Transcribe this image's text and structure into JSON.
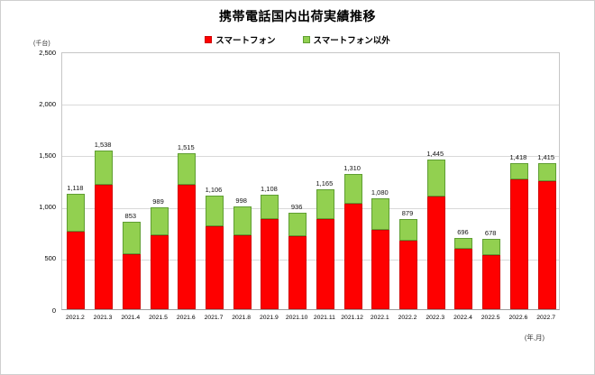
{
  "title": "携帯電話国内出荷実績推移",
  "y_axis_unit": "(千台)",
  "x_axis_unit": "(年,月)",
  "legend": {
    "items": [
      {
        "label": "スマートフォン",
        "color": "#fe0000"
      },
      {
        "label": "スマートフォン以外",
        "color": "#92d050"
      }
    ]
  },
  "colors": {
    "smartphone_fill": "#fe0000",
    "smartphone_border": "#d00000",
    "other_fill": "#92d050",
    "other_border": "#5f9e32",
    "gridline": "#d9d9d9"
  },
  "chart_data": {
    "type": "bar",
    "stacked": true,
    "title": "携帯電話国内出荷実績推移",
    "ylabel": "(千台)",
    "xlabel": "(年,月)",
    "ylim": [
      0,
      2500
    ],
    "grid": true,
    "legend_position": "top",
    "y_ticks": [
      "0",
      "500",
      "1,000",
      "1,500",
      "2,000",
      "2,500"
    ],
    "y_tick_values": [
      0,
      500,
      1000,
      1500,
      2000,
      2500
    ],
    "categories": [
      "2021.2",
      "2021.3",
      "2021.4",
      "2021.5",
      "2021.6",
      "2021.7",
      "2021.8",
      "2021.9",
      "2021.10",
      "2021.11",
      "2021.12",
      "2022.1",
      "2022.2",
      "2022.3",
      "2022.4",
      "2022.5",
      "2022.6",
      "2022.7"
    ],
    "series": [
      {
        "name": "スマートフォン",
        "color": "#fe0000",
        "border": "#d00000",
        "values": [
          750,
          1210,
          535,
          715,
          1210,
          808,
          715,
          873,
          705,
          877,
          1025,
          770,
          667,
          1090,
          590,
          525,
          1263,
          1240
        ]
      },
      {
        "name": "スマートフォン以外",
        "color": "#92d050",
        "border": "#5f9e32",
        "values": [
          368,
          328,
          318,
          274,
          305,
          298,
          283,
          235,
          231,
          288,
          285,
          310,
          212,
          355,
          106,
          153,
          155,
          175
        ]
      }
    ],
    "totals": [
      1118,
      1538,
      853,
      989,
      1515,
      1106,
      998,
      1108,
      936,
      1165,
      1310,
      1080,
      879,
      1445,
      696,
      678,
      1418,
      1415
    ],
    "total_labels": [
      "1,118",
      "1,538",
      "853",
      "989",
      "1,515",
      "1,106",
      "998",
      "1,108",
      "936",
      "1,165",
      "1,310",
      "1,080",
      "879",
      "1,445",
      "696",
      "678",
      "1,418",
      "1,415"
    ]
  }
}
